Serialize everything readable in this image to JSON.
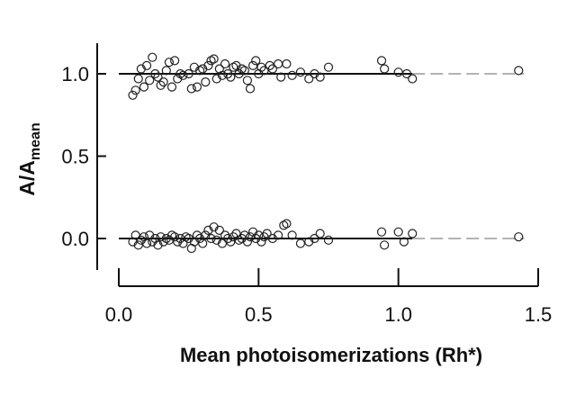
{
  "chart_data": {
    "type": "scatter",
    "title": "",
    "xlabel": "Mean photoisomerizations (Rh*)",
    "ylabel_main": "A/A",
    "ylabel_sub": "mean",
    "xlim": [
      0.0,
      1.5
    ],
    "ylim": [
      -0.2,
      1.2
    ],
    "x_ticks": [
      0.0,
      0.5,
      1.0,
      1.5
    ],
    "x_tick_labels": [
      "0.0",
      "0.5",
      "1.0",
      "1.5"
    ],
    "y_ticks": [
      0.0,
      0.5,
      1.0
    ],
    "y_tick_labels": [
      "0.0",
      "0.5",
      "1.0"
    ],
    "grid": false,
    "legend": "none",
    "reference_lines": [
      {
        "x": [
          0.0,
          1.45
        ],
        "y": [
          1.0,
          1.0
        ]
      },
      {
        "x": [
          0.0,
          1.45
        ],
        "y": [
          0.0,
          0.0
        ]
      }
    ],
    "series": [
      {
        "points": [
          [
            0.05,
            0.87
          ],
          [
            0.06,
            0.9
          ],
          [
            0.07,
            0.97
          ],
          [
            0.08,
            1.03
          ],
          [
            0.09,
            0.92
          ],
          [
            0.1,
            1.05
          ],
          [
            0.11,
            0.96
          ],
          [
            0.12,
            1.1
          ],
          [
            0.13,
            1.0
          ],
          [
            0.14,
            0.98
          ],
          [
            0.15,
            0.93
          ],
          [
            0.16,
            0.95
          ],
          [
            0.17,
            1.02
          ],
          [
            0.18,
            1.07
          ],
          [
            0.19,
            0.92
          ],
          [
            0.2,
            1.08
          ],
          [
            0.21,
            0.97
          ],
          [
            0.22,
            1.0
          ],
          [
            0.23,
            0.99
          ],
          [
            0.25,
            1.0
          ],
          [
            0.26,
            0.91
          ],
          [
            0.27,
            1.04
          ],
          [
            0.28,
            0.92
          ],
          [
            0.29,
            1.02
          ],
          [
            0.3,
            1.03
          ],
          [
            0.31,
            0.95
          ],
          [
            0.32,
            1.05
          ],
          [
            0.33,
            1.08
          ],
          [
            0.34,
            1.09
          ],
          [
            0.35,
            0.97
          ],
          [
            0.36,
            1.03
          ],
          [
            0.37,
            0.99
          ],
          [
            0.38,
            1.06
          ],
          [
            0.39,
            1.0
          ],
          [
            0.4,
            0.98
          ],
          [
            0.41,
            1.04
          ],
          [
            0.42,
            1.05
          ],
          [
            0.43,
            1.0
          ],
          [
            0.44,
            1.03
          ],
          [
            0.45,
            1.02
          ],
          [
            0.46,
            0.96
          ],
          [
            0.47,
            0.91
          ],
          [
            0.48,
            1.05
          ],
          [
            0.49,
            1.08
          ],
          [
            0.5,
            1.0
          ],
          [
            0.51,
            1.04
          ],
          [
            0.52,
            1.02
          ],
          [
            0.54,
            1.05
          ],
          [
            0.55,
            1.03
          ],
          [
            0.57,
            1.06
          ],
          [
            0.58,
            0.98
          ],
          [
            0.6,
            1.06
          ],
          [
            0.62,
            0.99
          ],
          [
            0.65,
            1.01
          ],
          [
            0.68,
            0.97
          ],
          [
            0.7,
            1.0
          ],
          [
            0.72,
            0.98
          ],
          [
            0.75,
            1.04
          ],
          [
            0.94,
            1.08
          ],
          [
            0.95,
            1.03
          ],
          [
            1.0,
            1.01
          ],
          [
            1.03,
            1.0
          ],
          [
            1.05,
            0.97
          ],
          [
            1.43,
            1.02
          ]
        ]
      },
      {
        "points": [
          [
            0.05,
            -0.02
          ],
          [
            0.06,
            0.02
          ],
          [
            0.07,
            -0.04
          ],
          [
            0.08,
            -0.01
          ],
          [
            0.09,
            0.01
          ],
          [
            0.1,
            -0.03
          ],
          [
            0.11,
            0.02
          ],
          [
            0.12,
            -0.02
          ],
          [
            0.13,
            0.0
          ],
          [
            0.14,
            -0.04
          ],
          [
            0.15,
            0.01
          ],
          [
            0.16,
            -0.02
          ],
          [
            0.17,
            0.0
          ],
          [
            0.18,
            -0.01
          ],
          [
            0.19,
            0.02
          ],
          [
            0.2,
            0.01
          ],
          [
            0.21,
            -0.02
          ],
          [
            0.22,
            0.0
          ],
          [
            0.23,
            -0.03
          ],
          [
            0.24,
            0.01
          ],
          [
            0.25,
            0.0
          ],
          [
            0.26,
            -0.06
          ],
          [
            0.27,
            -0.02
          ],
          [
            0.28,
            0.02
          ],
          [
            0.29,
            0.0
          ],
          [
            0.3,
            -0.03
          ],
          [
            0.31,
            0.02
          ],
          [
            0.32,
            0.05
          ],
          [
            0.33,
            0.0
          ],
          [
            0.34,
            0.07
          ],
          [
            0.35,
            -0.01
          ],
          [
            0.36,
            0.05
          ],
          [
            0.37,
            -0.03
          ],
          [
            0.38,
            0.02
          ],
          [
            0.39,
            0.0
          ],
          [
            0.4,
            -0.02
          ],
          [
            0.41,
            0.01
          ],
          [
            0.42,
            0.03
          ],
          [
            0.43,
            -0.01
          ],
          [
            0.44,
            0.0
          ],
          [
            0.45,
            0.02
          ],
          [
            0.46,
            -0.02
          ],
          [
            0.47,
            0.01
          ],
          [
            0.48,
            0.04
          ],
          [
            0.49,
            0.0
          ],
          [
            0.5,
            0.02
          ],
          [
            0.51,
            -0.02
          ],
          [
            0.52,
            0.01
          ],
          [
            0.53,
            0.03
          ],
          [
            0.55,
            0.0
          ],
          [
            0.57,
            0.02
          ],
          [
            0.59,
            0.08
          ],
          [
            0.6,
            0.09
          ],
          [
            0.62,
            0.02
          ],
          [
            0.65,
            -0.03
          ],
          [
            0.68,
            -0.02
          ],
          [
            0.7,
            0.0
          ],
          [
            0.72,
            0.03
          ],
          [
            0.75,
            -0.01
          ],
          [
            0.94,
            0.04
          ],
          [
            0.95,
            -0.04
          ],
          [
            1.0,
            0.04
          ],
          [
            1.02,
            -0.02
          ],
          [
            1.05,
            0.03
          ],
          [
            1.43,
            0.01
          ]
        ]
      }
    ]
  }
}
